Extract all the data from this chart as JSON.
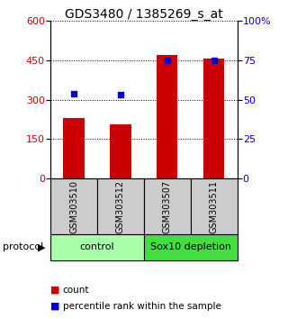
{
  "title": "GDS3480 / 1385269_s_at",
  "samples": [
    "GSM303510",
    "GSM303512",
    "GSM303507",
    "GSM303511"
  ],
  "counts": [
    230,
    205,
    470,
    455
  ],
  "percentile_ranks": [
    54,
    53,
    75,
    75
  ],
  "left_ylim": [
    0,
    600
  ],
  "left_yticks": [
    0,
    150,
    300,
    450,
    600
  ],
  "right_ylim": [
    0,
    100
  ],
  "right_yticks": [
    0,
    25,
    50,
    75,
    100
  ],
  "bar_color": "#cc0000",
  "dot_color": "#0000cc",
  "bar_width": 0.45,
  "protocol_groups": [
    {
      "label": "control",
      "indices": [
        0,
        1
      ],
      "color": "#aaffaa"
    },
    {
      "label": "Sox10 depletion",
      "indices": [
        2,
        3
      ],
      "color": "#44dd44"
    }
  ],
  "grid_color": "#000000",
  "bg_color": "#ffffff",
  "sample_box_color": "#cccccc",
  "legend_red_label": "count",
  "legend_blue_label": "percentile rank within the sample",
  "protocol_label": "protocol"
}
